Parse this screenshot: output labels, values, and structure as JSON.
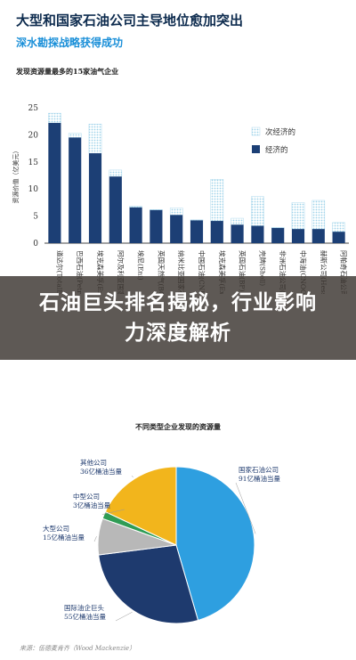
{
  "header": {
    "title": "大型和国家石油公司主导地位愈加突出",
    "subtitle": "深水勘探战略获得成功"
  },
  "banner": {
    "text": "石油巨头排名揭秘，行业影响力深度解析"
  },
  "source": "来源：伍德麦肯齐（Wood Mackenzie）",
  "colors": {
    "primary_bar": "#1c3f75",
    "secondary_bar": "#9fd3ea",
    "pie_national": "#2e9fe0",
    "pie_international": "#1e3a6e",
    "pie_large": "#b8b8b8",
    "pie_midsize": "#2f9c55",
    "pie_other": "#f2b51c"
  },
  "chart_data": [
    {
      "type": "bar",
      "title": "发现资源量最多的15家油气企业",
      "ylabel": "资源价值（亿美元）",
      "ylim": [
        0,
        25
      ],
      "yticks": [
        0,
        5,
        10,
        15,
        20,
        25
      ],
      "grid": false,
      "legend": "top-right",
      "stacked": true,
      "categories": [
        "道达尔(TotalEnergies)",
        "巴西石油(Petrobras)",
        "埃克森美孚(ExxonMobil)",
        "阿尔及利亚国家石油公司(Sonatrach)",
        "埃尼(Eni)",
        "英国天然气(BG Oil & Gas)",
        "纳米比亚国家石油公司(Namcor)",
        "中国石油(CNPC)",
        "埃克森美孚(ExxonMobil)",
        "英国石油(BP)",
        "壳牌(Shell)",
        "非洲石油公司(Africa Oil Corp)",
        "中海油(CNOOC)",
        "赫斯公司(Hess Corp)",
        "阿帕奇石油公司(APA Corporation)"
      ],
      "series": [
        {
          "name": "经济的",
          "values": [
            22.2,
            19.5,
            16.6,
            12.3,
            6.6,
            6.1,
            5.2,
            4.2,
            4.1,
            3.4,
            3.2,
            2.8,
            2.6,
            2.6,
            2.1
          ]
        },
        {
          "name": "次经济的",
          "values": [
            1.8,
            0.8,
            5.4,
            1.2,
            0.2,
            0.1,
            1.3,
            0.1,
            7.7,
            1.2,
            5.4,
            0.1,
            4.9,
            5.3,
            1.7
          ]
        }
      ]
    },
    {
      "type": "pie",
      "title": "不同类型企业发现的资源量",
      "slices": [
        {
          "name": "国家石油公司",
          "value": 91,
          "label": "91亿桶油当量"
        },
        {
          "name": "国际油企巨头",
          "value": 55,
          "label": "55亿桶油当量"
        },
        {
          "name": "大型公司",
          "value": 15,
          "label": "15亿桶油当量"
        },
        {
          "name": "中型公司",
          "value": 3,
          "label": "3亿桶油当量"
        },
        {
          "name": "其他公司",
          "value": 36,
          "label": "36亿桶油当量"
        }
      ]
    }
  ]
}
